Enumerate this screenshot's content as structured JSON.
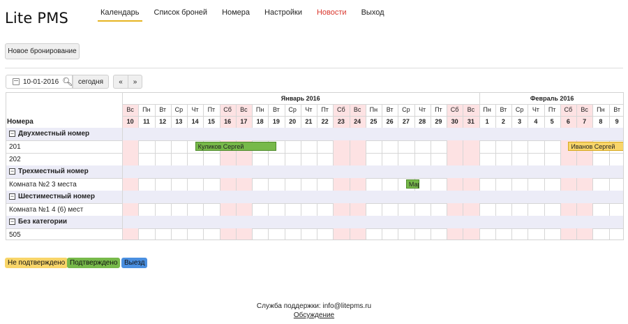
{
  "app": {
    "title": "Lite PMS"
  },
  "nav": {
    "calendar": "Календарь",
    "bookings": "Список броней",
    "rooms": "Номера",
    "settings": "Настройки",
    "news": "Новости",
    "logout": "Выход"
  },
  "toolbar": {
    "new_booking": "Новое бронирование",
    "date_value": "10-01-2016",
    "today": "сегодня",
    "prev": "«",
    "next": "»"
  },
  "calendar": {
    "rooms_header": "Номера",
    "months": [
      {
        "name": "Январь 2016",
        "days": 22
      },
      {
        "name": "Февраль 2016",
        "days": 9
      }
    ],
    "days": [
      {
        "dow": "Вс",
        "num": "10",
        "weekend": true
      },
      {
        "dow": "Пн",
        "num": "11",
        "weekend": false
      },
      {
        "dow": "Вт",
        "num": "12",
        "weekend": false
      },
      {
        "dow": "Ср",
        "num": "13",
        "weekend": false
      },
      {
        "dow": "Чт",
        "num": "14",
        "weekend": false
      },
      {
        "dow": "Пт",
        "num": "15",
        "weekend": false
      },
      {
        "dow": "Сб",
        "num": "16",
        "weekend": true
      },
      {
        "dow": "Вс",
        "num": "17",
        "weekend": true
      },
      {
        "dow": "Пн",
        "num": "18",
        "weekend": false
      },
      {
        "dow": "Вт",
        "num": "19",
        "weekend": false
      },
      {
        "dow": "Ср",
        "num": "20",
        "weekend": false
      },
      {
        "dow": "Чт",
        "num": "21",
        "weekend": false
      },
      {
        "dow": "Пт",
        "num": "22",
        "weekend": false
      },
      {
        "dow": "Сб",
        "num": "23",
        "weekend": true
      },
      {
        "dow": "Вс",
        "num": "24",
        "weekend": true
      },
      {
        "dow": "Пн",
        "num": "25",
        "weekend": false
      },
      {
        "dow": "Вт",
        "num": "26",
        "weekend": false
      },
      {
        "dow": "Ср",
        "num": "27",
        "weekend": false
      },
      {
        "dow": "Чт",
        "num": "28",
        "weekend": false
      },
      {
        "dow": "Пт",
        "num": "29",
        "weekend": false
      },
      {
        "dow": "Сб",
        "num": "30",
        "weekend": true
      },
      {
        "dow": "Вс",
        "num": "31",
        "weekend": true
      },
      {
        "dow": "Пн",
        "num": "1",
        "weekend": false
      },
      {
        "dow": "Вт",
        "num": "2",
        "weekend": false
      },
      {
        "dow": "Ср",
        "num": "3",
        "weekend": false
      },
      {
        "dow": "Чт",
        "num": "4",
        "weekend": false
      },
      {
        "dow": "Пт",
        "num": "5",
        "weekend": false
      },
      {
        "dow": "Сб",
        "num": "6",
        "weekend": true
      },
      {
        "dow": "Вс",
        "num": "7",
        "weekend": true
      },
      {
        "dow": "Пн",
        "num": "8",
        "weekend": false
      },
      {
        "dow": "Вт",
        "num": "9",
        "weekend": false
      }
    ],
    "rows": [
      {
        "type": "category",
        "label": "Двухместный номер",
        "toggle": "−"
      },
      {
        "type": "room",
        "label": "201",
        "bookings": [
          {
            "guest": "Куликов Сергей",
            "from": "14",
            "to": "19",
            "status": "confirmed"
          },
          {
            "guest": "Иванов Сергей",
            "from": "6",
            "to": "9",
            "status": "unconfirmed",
            "continues": true
          }
        ]
      },
      {
        "type": "room",
        "label": "202",
        "bookings": []
      },
      {
        "type": "category",
        "label": "Трехместный номер",
        "toggle": "−"
      },
      {
        "type": "room",
        "label": "Комната №2 3 места",
        "bookings": [
          {
            "guest": "Мар",
            "from": "27",
            "to": "27",
            "status": "confirmed"
          }
        ]
      },
      {
        "type": "category",
        "label": "Шестиместный номер",
        "toggle": "−"
      },
      {
        "type": "room",
        "label": "Комната №1 4 (6) мест",
        "bookings": []
      },
      {
        "type": "category",
        "label": "Без категории",
        "toggle": "−"
      },
      {
        "type": "room",
        "label": "505",
        "bookings": []
      }
    ]
  },
  "legend": [
    {
      "label": "Не подтверждено",
      "color": "#f8d569"
    },
    {
      "label": "Подтверждено",
      "color": "#77b94a"
    },
    {
      "label": "Выезд",
      "color": "#4a8fe0"
    }
  ],
  "footer": {
    "support": "Служба поддержки: info@litepms.ru",
    "discussion": "Обсуждение"
  },
  "colors": {
    "weekend_bg": "#fde2e3",
    "category_bg": "#ececf7",
    "confirmed": "#77b94a",
    "unconfirmed": "#f8d569",
    "active_tab": "#e6b422",
    "news": "#d9342b"
  }
}
